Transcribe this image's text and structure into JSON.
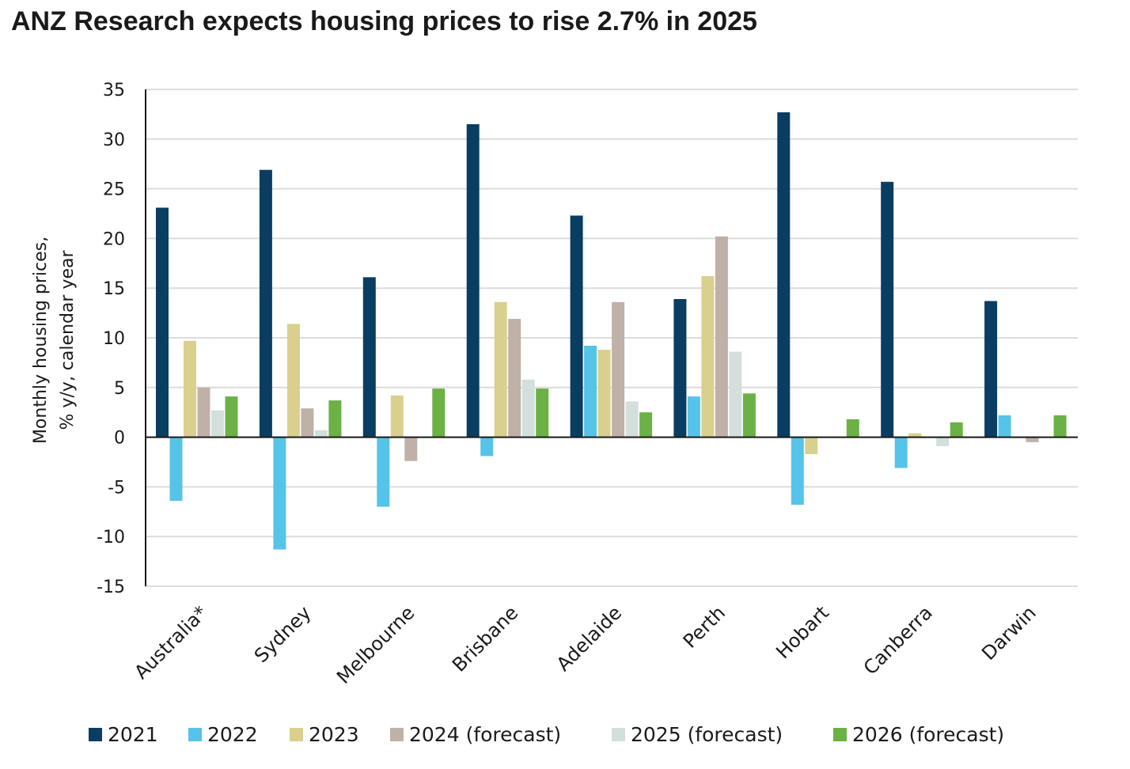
{
  "chart_data": {
    "type": "bar",
    "title": "ANZ Research expects housing prices to rise 2.7% in 2025",
    "ylabel_lines": [
      "Monthly housing prices,",
      "% y/y, calendar year"
    ],
    "ylim": [
      -15,
      35
    ],
    "yticks": [
      35,
      30,
      25,
      20,
      15,
      10,
      5,
      0,
      -5,
      -10,
      -15
    ],
    "grid": true,
    "legend_position": "bottom",
    "categories": [
      "Australia*",
      "Sydney",
      "Melbourne",
      "Brisbane",
      "Adelaide",
      "Perth",
      "Hobart",
      "Canberra",
      "Darwin"
    ],
    "series": [
      {
        "name": "2021",
        "color": "#0a3d62",
        "values": [
          23.1,
          26.9,
          16.1,
          31.5,
          22.3,
          13.9,
          32.7,
          25.7,
          13.7
        ]
      },
      {
        "name": "2022",
        "color": "#56c3e9",
        "values": [
          -6.4,
          -11.3,
          -7.0,
          -1.9,
          9.2,
          4.1,
          -6.8,
          -3.1,
          2.2
        ]
      },
      {
        "name": "2023",
        "color": "#d9d08e",
        "values": [
          9.7,
          11.4,
          4.2,
          13.6,
          8.8,
          16.2,
          -1.7,
          0.4,
          0.0
        ]
      },
      {
        "name": "2024 (forecast)",
        "color": "#bfb1a8",
        "values": [
          5.0,
          2.9,
          -2.4,
          11.9,
          13.6,
          20.2,
          0.0,
          0.0,
          -0.5
        ]
      },
      {
        "name": "2025 (forecast)",
        "color": "#d3dfda",
        "values": [
          2.7,
          0.7,
          0.0,
          5.8,
          3.6,
          8.6,
          0.0,
          -0.9,
          0.0
        ]
      },
      {
        "name": "2026 (forecast)",
        "color": "#6bb145",
        "values": [
          4.1,
          3.7,
          4.9,
          4.9,
          2.5,
          4.4,
          1.8,
          1.5,
          2.2
        ]
      }
    ]
  }
}
